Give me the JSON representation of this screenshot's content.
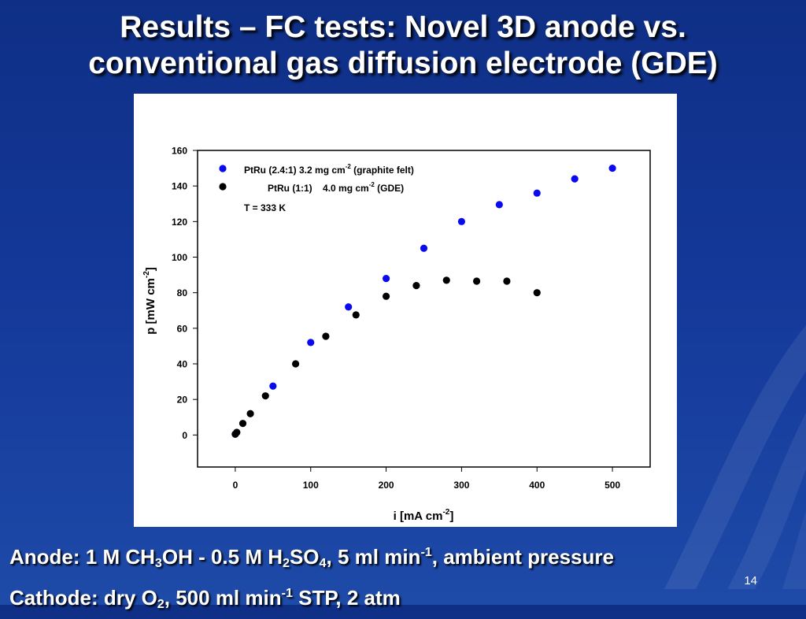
{
  "slide": {
    "title_line1": "Results – FC tests: Novel 3D anode vs.",
    "title_line2": "conventional gas diffusion electrode (GDE)",
    "page_number": "14",
    "anode_line": {
      "prefix": "Anode: 1 M CH",
      "sub1": "3",
      "mid1": "OH - 0.5 M H",
      "sub2": "2",
      "mid2": "SO",
      "sub3": "4",
      "mid3": ", 5 ml min",
      "sup1": "-1",
      "suffix": ", ambient pressure"
    },
    "cathode_line": {
      "prefix": "Cathode: dry O",
      "sub1": "2",
      "mid1": ", 500 ml min",
      "sup1": "-1",
      "suffix": " STP, 2 atm"
    }
  },
  "chart_data": {
    "type": "scatter",
    "title": "",
    "xlabel": {
      "main": "i [mA cm",
      "sup": "-2",
      "end": "]"
    },
    "ylabel": {
      "main": "p [mW cm",
      "sup": "-2",
      "end": "]"
    },
    "xlim": [
      -50,
      550
    ],
    "ylim": [
      -18,
      160
    ],
    "xticks": [
      0,
      100,
      200,
      300,
      400,
      500
    ],
    "yticks": [
      0,
      20,
      40,
      60,
      80,
      100,
      120,
      140,
      160
    ],
    "grid": false,
    "legend_position": "top-left",
    "annotation": "T = 333 K",
    "series": [
      {
        "name": "PtRu (2.4:1) 3.2 mg cm",
        "name_sup": "-2",
        "name_end": " (graphite felt)",
        "color": "#0a0aee",
        "x": [
          0,
          50,
          100,
          150,
          200,
          250,
          300,
          350,
          400,
          450,
          500
        ],
        "y": [
          0.5,
          27.5,
          52,
          72,
          88,
          105,
          120,
          129.5,
          136,
          144,
          150
        ]
      },
      {
        "name": "PtRu (1:1)    4.0 mg cm",
        "name_sup": "-2",
        "name_end": " (GDE)",
        "color": "#000000",
        "x": [
          0,
          2,
          10,
          20,
          40,
          80,
          120,
          160,
          200,
          240,
          280,
          320,
          360,
          400
        ],
        "y": [
          0.5,
          1.5,
          6.5,
          12,
          22,
          40,
          55.5,
          67.5,
          78,
          84,
          87,
          86.5,
          86.5,
          80
        ]
      }
    ]
  }
}
